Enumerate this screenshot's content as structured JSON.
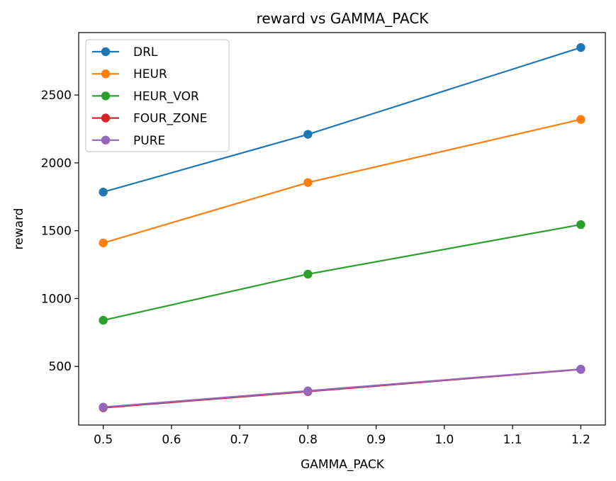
{
  "chart_data": {
    "type": "line",
    "title": "reward vs GAMMA_PACK",
    "xlabel": "GAMMA_PACK",
    "ylabel": "reward",
    "x": [
      0.5,
      0.8,
      1.2
    ],
    "xlim": [
      0.464,
      1.236
    ],
    "ylim": [
      68,
      2960
    ],
    "xticks": [
      0.5,
      0.6,
      0.7,
      0.8,
      0.9,
      1.0,
      1.1,
      1.2
    ],
    "xtick_labels": [
      "0.5",
      "0.6",
      "0.7",
      "0.8",
      "0.9",
      "1.0",
      "1.1",
      "1.2"
    ],
    "yticks": [
      500,
      1000,
      1500,
      2000,
      2500
    ],
    "ytick_labels": [
      "500",
      "1000",
      "1500",
      "2000",
      "2500"
    ],
    "grid": false,
    "legend_position": "top-left",
    "series": [
      {
        "name": "DRL",
        "color": "#1f77b4",
        "values": [
          1785,
          2210,
          2850
        ]
      },
      {
        "name": "HEUR",
        "color": "#ff7f0e",
        "values": [
          1410,
          1855,
          2320
        ]
      },
      {
        "name": "HEUR_VOR",
        "color": "#2ca02c",
        "values": [
          840,
          1180,
          1545
        ]
      },
      {
        "name": "FOUR_ZONE",
        "color": "#d62728",
        "values": [
          195,
          315,
          478
        ]
      },
      {
        "name": "PURE",
        "color": "#9467bd",
        "values": [
          200,
          320,
          480
        ]
      }
    ]
  }
}
